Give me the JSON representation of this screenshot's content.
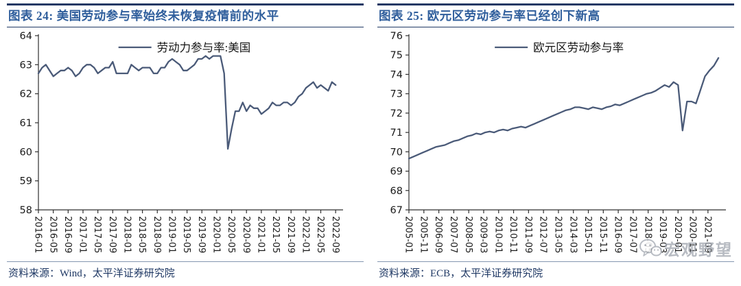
{
  "accent_colors": {
    "navy_rule": "#1F3864",
    "title_blue": "#2F5E9C",
    "series_line": "#4A5A78",
    "source_rule": "#8496B0",
    "watermark_gray": "#A3A8B1"
  },
  "watermark": {
    "text": "宏观野望",
    "icon": "wechat-icon"
  },
  "panels": [
    {
      "figure_label": "图表 24: 美国劳动参与率始终未恢复疫情前的水平",
      "source": "资料来源：Wind，太平洋证券研究院"
    },
    {
      "figure_label": "图表 25: 欧元区劳动参与率已经创下新高",
      "source": "资料来源：ECB，太平洋证券研究院"
    }
  ],
  "chart_data": [
    {
      "type": "line",
      "title": "图表 24: 美国劳动参与率始终未恢复疫情前的水平",
      "xlabel": "",
      "ylabel": "",
      "grid": false,
      "legend_position": "top-center",
      "ylim": [
        58,
        64
      ],
      "ytick_step": 1,
      "ytick_labels": [
        "58",
        "59",
        "60",
        "61",
        "62",
        "63",
        "64"
      ],
      "xtick_labels": [
        "2016-01",
        "2016-05",
        "2016-09",
        "2017-01",
        "2017-05",
        "2017-09",
        "2018-01",
        "2018-05",
        "2018-09",
        "2019-01",
        "2019-05",
        "2019-09",
        "2020-01",
        "2020-05",
        "2020-09",
        "2021-01",
        "2021-05",
        "2021-09",
        "2022-01",
        "2022-05",
        "2022-09"
      ],
      "x_start": "2016-01",
      "x_end": "2022-09",
      "data_step_months": 1,
      "tick_step_months": 4,
      "axis_span_months": 82,
      "series": [
        {
          "name": "劳动力参与率:美国",
          "color": "#4A5A78",
          "values": [
            62.7,
            62.9,
            63.0,
            62.8,
            62.6,
            62.7,
            62.8,
            62.8,
            62.9,
            62.8,
            62.6,
            62.7,
            62.9,
            63.0,
            63.0,
            62.9,
            62.7,
            62.8,
            62.9,
            62.9,
            63.1,
            62.7,
            62.7,
            62.7,
            62.7,
            63.0,
            62.9,
            62.8,
            62.9,
            62.9,
            62.9,
            62.7,
            62.7,
            62.9,
            62.9,
            63.1,
            63.2,
            63.1,
            63.0,
            62.8,
            62.8,
            62.9,
            63.0,
            63.2,
            63.2,
            63.3,
            63.2,
            63.3,
            63.3,
            63.3,
            62.7,
            60.1,
            60.8,
            61.4,
            61.4,
            61.7,
            61.4,
            61.6,
            61.5,
            61.5,
            61.3,
            61.4,
            61.5,
            61.7,
            61.6,
            61.6,
            61.7,
            61.7,
            61.6,
            61.7,
            61.9,
            62.0,
            62.2,
            62.3,
            62.4,
            62.2,
            62.3,
            62.2,
            62.1,
            62.4,
            62.3
          ]
        }
      ]
    },
    {
      "type": "line",
      "title": "图表 25: 欧元区劳动参与率已经创下新高",
      "xlabel": "",
      "ylabel": "",
      "grid": false,
      "legend_position": "top-center",
      "ylim": [
        67,
        76
      ],
      "ytick_step": 1,
      "ytick_labels": [
        "67",
        "68",
        "69",
        "70",
        "71",
        "72",
        "73",
        "74",
        "75",
        "76"
      ],
      "xtick_labels": [
        "2005-01",
        "2005-11",
        "2006-09",
        "2007-07",
        "2008-05",
        "2009-03",
        "2010-01",
        "2010-11",
        "2011-09",
        "2012-07",
        "2013-05",
        "2014-03",
        "2015-01",
        "2015-11",
        "2016-09",
        "2017-07",
        "2018-05",
        "2019-03",
        "2020-01",
        "2020-11",
        "2021-09"
      ],
      "x_start": "2005-Q1",
      "x_end": "2022-Q2",
      "data_step_months": 3,
      "tick_step_months": 10,
      "axis_span_months": 212,
      "series": [
        {
          "name": "欧元区劳动参与率",
          "color": "#4A5A78",
          "values": [
            69.65,
            69.75,
            69.85,
            69.95,
            70.05,
            70.15,
            70.25,
            70.3,
            70.35,
            70.45,
            70.55,
            70.6,
            70.7,
            70.8,
            70.85,
            70.95,
            70.9,
            71.0,
            71.05,
            71.0,
            71.1,
            71.15,
            71.1,
            71.2,
            71.25,
            71.3,
            71.25,
            71.35,
            71.45,
            71.55,
            71.65,
            71.75,
            71.85,
            71.95,
            72.05,
            72.15,
            72.2,
            72.3,
            72.3,
            72.25,
            72.2,
            72.3,
            72.25,
            72.2,
            72.3,
            72.35,
            72.45,
            72.4,
            72.5,
            72.6,
            72.7,
            72.8,
            72.9,
            73.0,
            73.05,
            73.15,
            73.3,
            73.45,
            73.35,
            73.6,
            73.45,
            71.1,
            72.6,
            72.6,
            72.5,
            73.2,
            73.9,
            74.2,
            74.45,
            74.85
          ]
        }
      ]
    }
  ]
}
